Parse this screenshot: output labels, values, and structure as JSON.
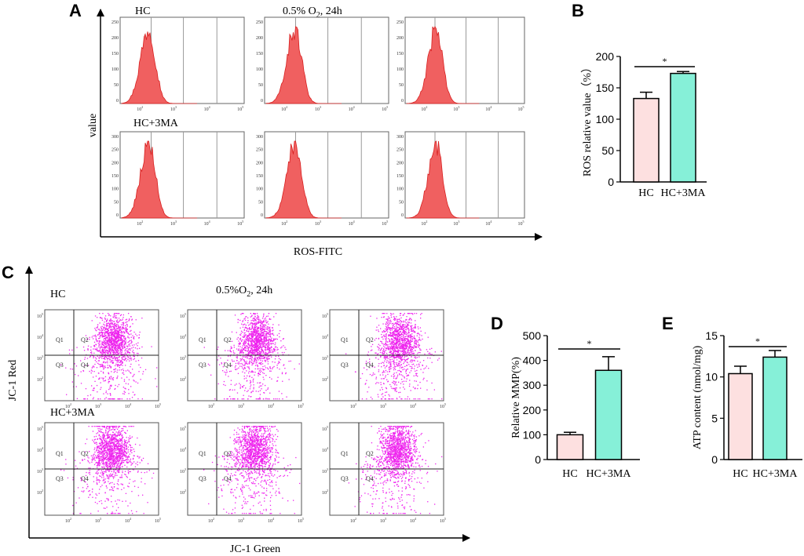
{
  "panels": {
    "a": "A",
    "b": "B",
    "c": "C",
    "d": "D",
    "e": "E"
  },
  "colors": {
    "hist_fill": "#f06060",
    "hist_stroke": "#d81f1f",
    "dot": "#ee22ee",
    "bar_hc": "#fde0e0",
    "bar_hc3ma": "#86f0d8",
    "axis": "#000000",
    "gate": "#999999"
  },
  "panel_a": {
    "group1": "HC",
    "group2": "HC+3MA",
    "condition_prefix": "0.5% O",
    "condition_sub": "2",
    "condition_suffix": ", 24h",
    "ylabel": "value",
    "xlabel": "ROS-FITC",
    "yticks": [
      "250",
      "200",
      "150",
      "100",
      "50",
      "0"
    ],
    "yticks_row2": [
      "300",
      "250",
      "200",
      "150",
      "100",
      "50",
      "0"
    ],
    "xtick_base": "10",
    "xtick_exps": [
      "2",
      "3",
      "4",
      "5"
    ]
  },
  "panel_c": {
    "group1": "HC",
    "group2": "HC+3MA",
    "condition_prefix": "0.5%O",
    "condition_sub": "2",
    "condition_suffix": ", 24h",
    "ylabel": "JC-1 Red",
    "xlabel": "JC-1 Green",
    "quadrants": [
      "Q1",
      "Q2",
      "Q3",
      "Q4"
    ],
    "tick_base": "10",
    "tick_exps": [
      "2",
      "3",
      "4",
      "5"
    ]
  },
  "chart_data": [
    {
      "type": "bar",
      "panel": "B",
      "categories": [
        "HC",
        "HC+3MA"
      ],
      "values": [
        133,
        173
      ],
      "errors": [
        10,
        3
      ],
      "ylabel": "ROS relative value（%）",
      "ylim": [
        0,
        200
      ],
      "yticks": [
        0,
        50,
        100,
        150,
        200
      ],
      "significance": "*"
    },
    {
      "type": "bar",
      "panel": "D",
      "categories": [
        "HC",
        "HC+3MA"
      ],
      "values": [
        100,
        360
      ],
      "errors": [
        10,
        55
      ],
      "ylabel": "Relative MMP(%)",
      "ylim": [
        0,
        500
      ],
      "yticks": [
        0,
        100,
        200,
        300,
        400,
        500
      ],
      "significance": "*"
    },
    {
      "type": "bar",
      "panel": "E",
      "categories": [
        "HC",
        "HC+3MA"
      ],
      "values": [
        10.4,
        12.4
      ],
      "errors": [
        0.9,
        0.8
      ],
      "ylabel": "ATP content (nmol/mg)",
      "ylim": [
        0,
        15
      ],
      "yticks": [
        0,
        5,
        10,
        15
      ],
      "significance": "*"
    }
  ]
}
